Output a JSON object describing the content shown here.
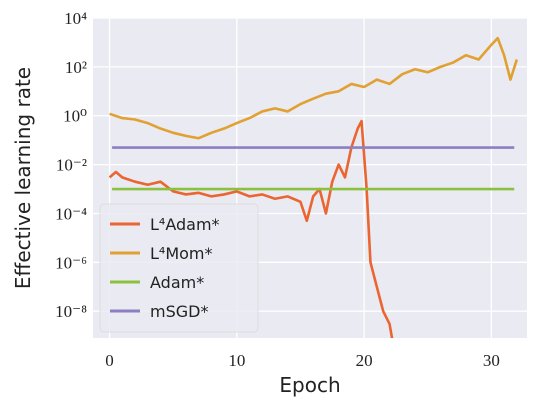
{
  "chart_data": {
    "type": "line",
    "xlabel": "Epoch",
    "ylabel": "Effective learning rate",
    "xlim": [
      -1.3,
      32.8
    ],
    "xticks": [
      0,
      10,
      20,
      30
    ],
    "ylim": [
      8e-10,
      10000
    ],
    "log_y": true,
    "grid": true,
    "yticks": [
      {
        "value": 1e-08,
        "label": "10⁻⁸"
      },
      {
        "value": 1e-06,
        "label": "10⁻⁶"
      },
      {
        "value": 0.0001,
        "label": "10⁻⁴"
      },
      {
        "value": 0.01,
        "label": "10⁻²"
      },
      {
        "value": 1,
        "label": "10⁰"
      },
      {
        "value": 100,
        "label": "10²"
      },
      {
        "value": 10000,
        "label": "10⁴"
      }
    ],
    "legend": "lower left",
    "series": [
      {
        "name": "L⁴Adam*",
        "color": "#ea6531",
        "x": [
          0,
          0.5,
          1,
          2,
          3,
          4,
          5,
          6,
          7,
          8,
          9,
          10,
          11,
          12,
          13,
          14,
          15,
          15.5,
          16,
          16.5,
          17,
          17.5,
          18,
          18.5,
          19,
          19.5,
          19.8,
          20.2,
          20.5,
          21,
          21.5,
          22,
          22.5
        ],
        "values": [
          0.003,
          0.005,
          0.003,
          0.002,
          0.0015,
          0.002,
          0.0008,
          0.0006,
          0.0007,
          0.0005,
          0.0006,
          0.0008,
          0.0005,
          0.0006,
          0.0004,
          0.0005,
          0.0003,
          5e-05,
          0.0005,
          0.001,
          0.0001,
          0.002,
          0.01,
          0.003,
          0.05,
          0.3,
          0.6,
          0.001,
          1e-06,
          1e-07,
          1e-08,
          3e-09,
          1e-10
        ]
      },
      {
        "name": "L⁴Mom*",
        "color": "#e1a032",
        "x": [
          0,
          1,
          2,
          3,
          4,
          5,
          6,
          7,
          8,
          9,
          10,
          11,
          12,
          13,
          14,
          15,
          16,
          17,
          18,
          19,
          20,
          21,
          22,
          23,
          24,
          25,
          26,
          27,
          28,
          29,
          30,
          30.5,
          31,
          31.5,
          32
        ],
        "values": [
          1.2,
          0.8,
          0.7,
          0.5,
          0.3,
          0.2,
          0.15,
          0.12,
          0.2,
          0.3,
          0.5,
          0.8,
          1.5,
          2,
          1.5,
          3,
          5,
          8,
          10,
          20,
          15,
          30,
          20,
          50,
          80,
          60,
          100,
          150,
          300,
          200,
          800,
          1500,
          300,
          30,
          200
        ]
      },
      {
        "name": "Adam*",
        "color": "#8cc13f",
        "x": [
          0.2,
          31.8
        ],
        "values": [
          0.001,
          0.001
        ]
      },
      {
        "name": "mSGD*",
        "color": "#8d80c0",
        "x": [
          0.2,
          31.8
        ],
        "values": [
          0.05,
          0.05
        ]
      }
    ]
  }
}
